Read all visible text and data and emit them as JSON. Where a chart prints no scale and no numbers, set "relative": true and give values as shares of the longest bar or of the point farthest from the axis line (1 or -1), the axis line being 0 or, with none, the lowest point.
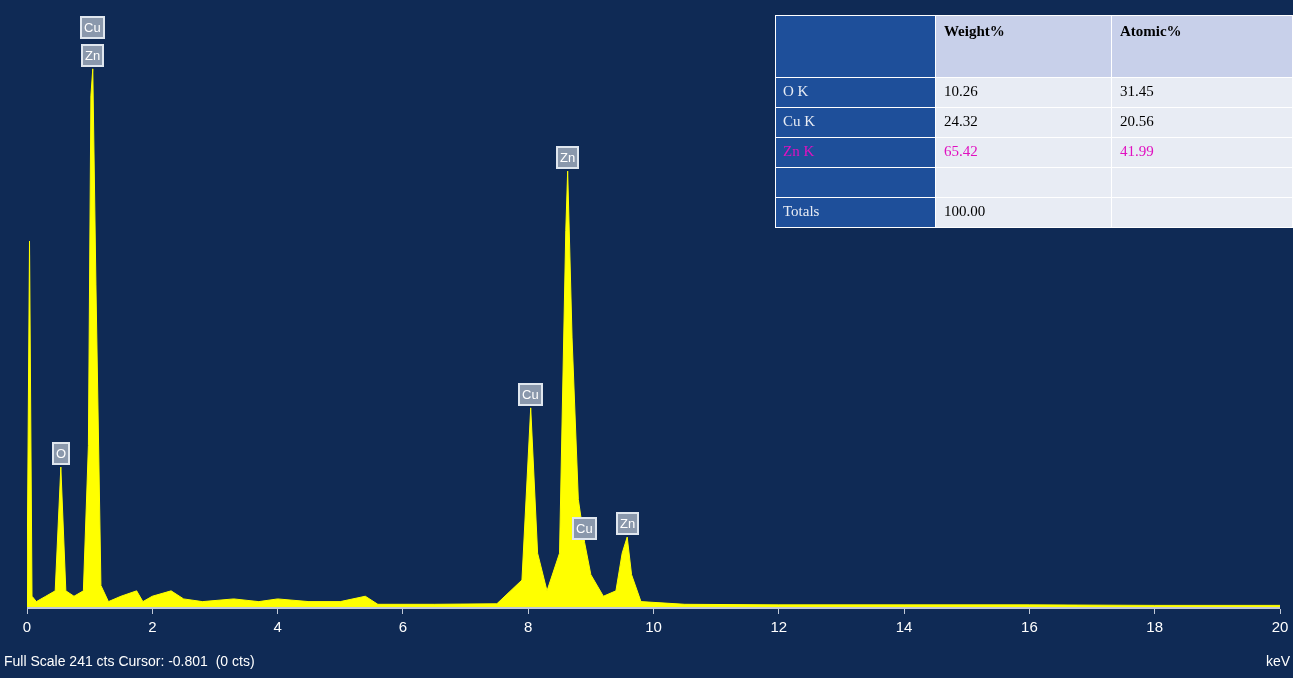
{
  "chart_data": [
    {
      "type": "area",
      "relative": true,
      "xlabel": "keV",
      "color": "#ffff00",
      "xlim": [
        0,
        20
      ],
      "xticks": [
        0,
        2,
        4,
        6,
        8,
        10,
        12,
        14,
        16,
        18,
        20
      ],
      "legend": false,
      "x": [
        0,
        0.04,
        0.08,
        0.15,
        0.3,
        0.45,
        0.54,
        0.62,
        0.75,
        0.9,
        0.98,
        1.02,
        1.05,
        1.1,
        1.18,
        1.3,
        1.5,
        1.75,
        1.85,
        2.0,
        2.3,
        2.5,
        2.8,
        3.3,
        3.7,
        4.0,
        4.5,
        5.0,
        5.4,
        5.6,
        6.5,
        7.5,
        7.9,
        8.04,
        8.15,
        8.3,
        8.5,
        8.6,
        8.63,
        8.7,
        8.8,
        8.9,
        9.0,
        9.2,
        9.4,
        9.5,
        9.58,
        9.65,
        9.8,
        10.5,
        12,
        14,
        16,
        18,
        20
      ],
      "values": [
        0.02,
        0.68,
        0.02,
        0.01,
        0.02,
        0.03,
        0.26,
        0.03,
        0.02,
        0.03,
        0.3,
        0.95,
        1.0,
        0.6,
        0.04,
        0.01,
        0.02,
        0.03,
        0.01,
        0.02,
        0.03,
        0.015,
        0.01,
        0.015,
        0.01,
        0.015,
        0.01,
        0.01,
        0.02,
        0.005,
        0.005,
        0.006,
        0.05,
        0.37,
        0.1,
        0.03,
        0.1,
        0.7,
        0.81,
        0.5,
        0.2,
        0.12,
        0.06,
        0.02,
        0.03,
        0.1,
        0.13,
        0.06,
        0.01,
        0.005,
        0.004,
        0.004,
        0.004,
        0.003,
        0.003
      ],
      "annotations": [
        {
          "text": "O",
          "x": 0.54,
          "y": 0.26
        },
        {
          "text": "Zn",
          "x": 1.05,
          "y": 1.0
        },
        {
          "text": "Cu",
          "x": 1.05,
          "y": 1.0
        },
        {
          "text": "Zn",
          "x": 8.63,
          "y": 0.81
        },
        {
          "text": "Cu",
          "x": 8.04,
          "y": 0.37
        },
        {
          "text": "Cu",
          "x": 8.9,
          "y": 0.12
        },
        {
          "text": "Zn",
          "x": 9.58,
          "y": 0.13
        },
        "Full Scale 241 cts Cursor: -0.801  (0 cts)"
      ]
    },
    {
      "type": "other",
      "data_labels": true,
      "categories": [
        "O K",
        "Cu K",
        "Zn K",
        null,
        "Totals"
      ],
      "colors": [
        "#000000",
        "#000000",
        "#e010c0",
        "#000000",
        "#000000"
      ],
      "series": [
        {
          "name": "Weight%",
          "values": [
            10.26,
            24.32,
            65.42,
            null,
            100
          ],
          "value_labels": [
            "10.26",
            "24.32",
            "65.42",
            null,
            "100.00"
          ]
        },
        {
          "name": "Atomic%",
          "values": [
            31.45,
            20.56,
            41.99,
            null,
            null
          ],
          "value_labels": [
            "31.45",
            "20.56",
            "41.99",
            null,
            null
          ]
        }
      ]
    }
  ]
}
